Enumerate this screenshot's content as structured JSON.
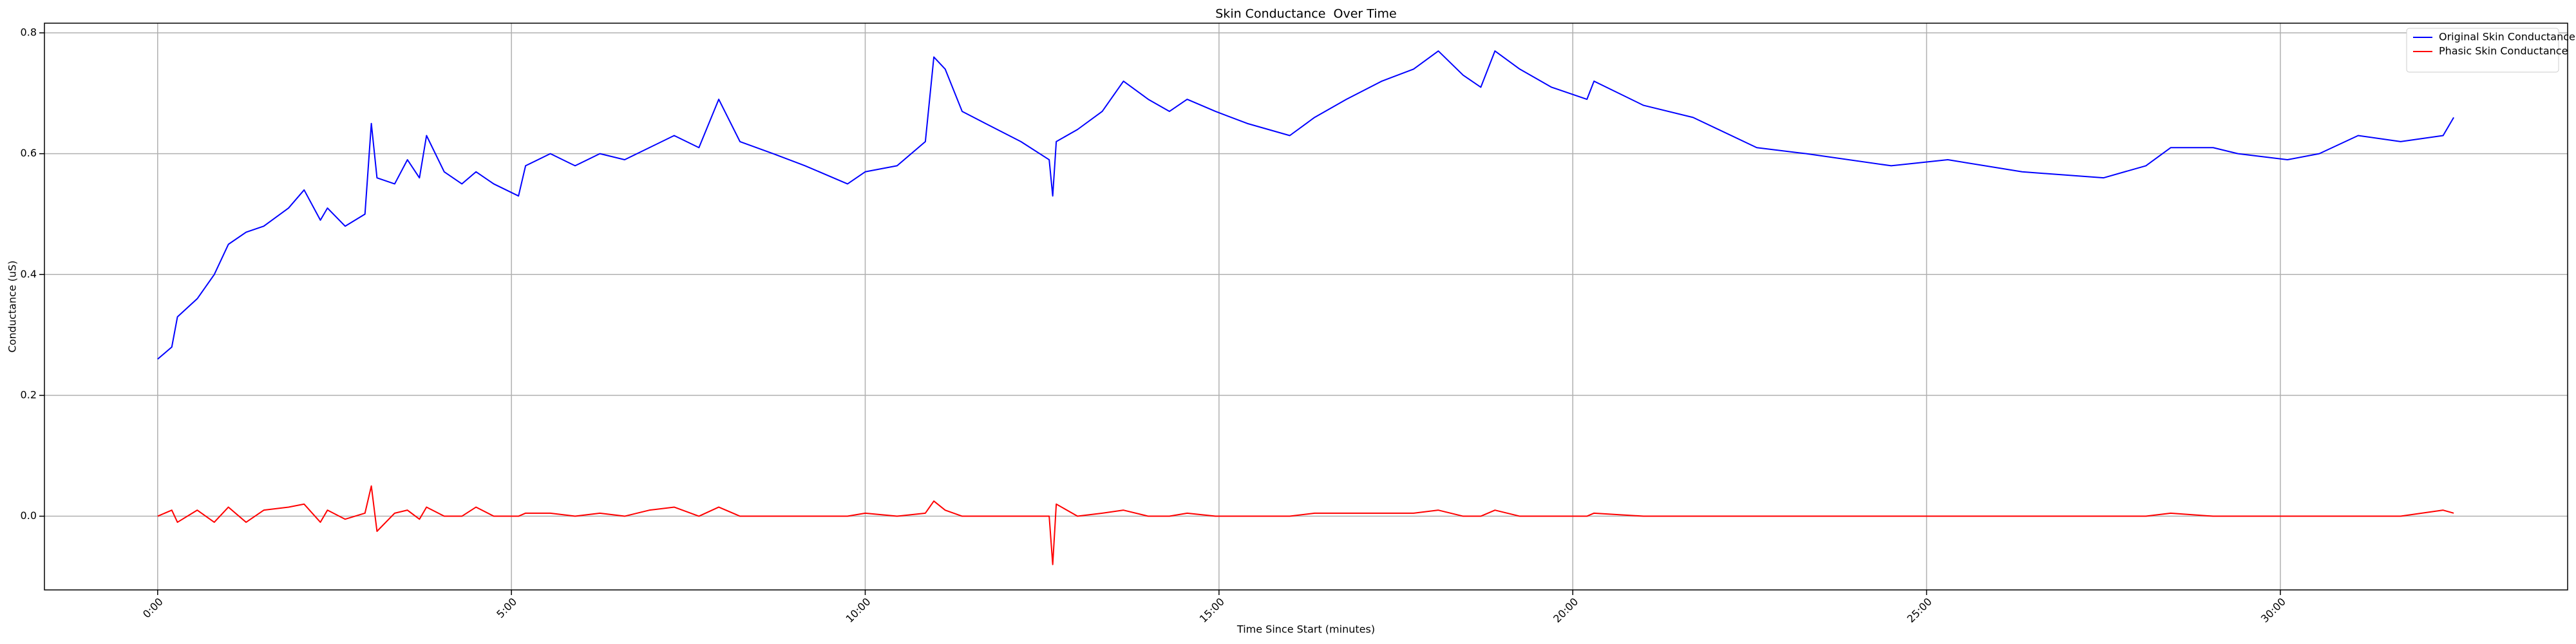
{
  "chart_data": {
    "type": "line",
    "title": "Skin Conductance  Over Time",
    "xlabel": "Time Since Start (minutes)",
    "ylabel": "Conductance (uS)",
    "x": [
      0,
      0.2,
      0.28,
      0.56,
      0.8,
      1.0,
      1.25,
      1.5,
      1.85,
      2.07,
      2.3,
      2.4,
      2.65,
      2.93,
      3.02,
      3.1,
      3.35,
      3.53,
      3.7,
      3.8,
      4.05,
      4.3,
      4.5,
      4.75,
      5.1,
      5.2,
      5.55,
      5.9,
      6.25,
      6.6,
      6.95,
      7.3,
      7.65,
      7.93,
      8.23,
      8.7,
      9.15,
      9.75,
      10.0,
      10.45,
      10.85,
      10.97,
      11.13,
      11.37,
      11.7,
      12.2,
      12.6,
      12.65,
      12.7,
      13.0,
      13.35,
      13.65,
      14.0,
      14.3,
      14.55,
      14.95,
      15.4,
      16.0,
      16.35,
      16.8,
      17.3,
      17.75,
      18.1,
      18.45,
      18.7,
      18.9,
      19.25,
      19.7,
      20.2,
      20.3,
      21.0,
      21.7,
      22.6,
      23.3,
      24.5,
      25.3,
      26.35,
      27.5,
      28.1,
      28.45,
      29.05,
      29.4,
      30.1,
      30.55,
      31.1,
      31.7,
      32.3,
      32.45
    ],
    "series": [
      {
        "name": "Original Skin Conductance",
        "color": "#0000ff",
        "values": [
          0.26,
          0.28,
          0.33,
          0.36,
          0.4,
          0.45,
          0.47,
          0.48,
          0.51,
          0.54,
          0.49,
          0.51,
          0.48,
          0.5,
          0.65,
          0.56,
          0.55,
          0.59,
          0.56,
          0.63,
          0.57,
          0.55,
          0.57,
          0.55,
          0.53,
          0.58,
          0.6,
          0.58,
          0.6,
          0.59,
          0.61,
          0.63,
          0.61,
          0.69,
          0.62,
          0.6,
          0.58,
          0.55,
          0.57,
          0.58,
          0.62,
          0.76,
          0.74,
          0.67,
          0.65,
          0.62,
          0.59,
          0.53,
          0.62,
          0.64,
          0.67,
          0.72,
          0.69,
          0.67,
          0.69,
          0.67,
          0.65,
          0.63,
          0.66,
          0.69,
          0.72,
          0.74,
          0.77,
          0.73,
          0.71,
          0.77,
          0.74,
          0.71,
          0.69,
          0.72,
          0.68,
          0.66,
          0.61,
          0.6,
          0.58,
          0.59,
          0.57,
          0.56,
          0.58,
          0.61,
          0.61,
          0.6,
          0.59,
          0.6,
          0.63,
          0.62,
          0.63,
          0.66
        ]
      },
      {
        "name": "Phasic Skin Conductance",
        "color": "#ff0000",
        "values": [
          0,
          0.01,
          -0.01,
          0.01,
          -0.01,
          0.015,
          -0.01,
          0.01,
          0.015,
          0.02,
          -0.01,
          0.01,
          -0.005,
          0.005,
          0.05,
          -0.025,
          0.005,
          0.01,
          -0.005,
          0.015,
          0,
          0,
          0.015,
          0,
          0,
          0.005,
          0.005,
          0,
          0.005,
          0,
          0.01,
          0.015,
          0,
          0.015,
          0,
          0,
          0,
          0,
          0.005,
          0,
          0.005,
          0.025,
          0.01,
          0,
          0,
          0,
          0,
          -0.08,
          0.02,
          0,
          0.005,
          0.01,
          0,
          0,
          0.005,
          0,
          0,
          0,
          0.005,
          0.005,
          0.005,
          0.005,
          0.01,
          0,
          0,
          0.01,
          0,
          0,
          0,
          0.005,
          0,
          0,
          0,
          0,
          0,
          0,
          0,
          0,
          0,
          0.005,
          0,
          0,
          0,
          0,
          0,
          0,
          0.01,
          0.005
        ]
      }
    ],
    "xlim": [
      -1.6,
      34.06
    ],
    "ylim": [
      -0.122,
      0.816
    ],
    "xticks": [
      {
        "value": 0,
        "label": "0:00"
      },
      {
        "value": 5,
        "label": "5:00"
      },
      {
        "value": 10,
        "label": "10:00"
      },
      {
        "value": 15,
        "label": "15:00"
      },
      {
        "value": 20,
        "label": "20:00"
      },
      {
        "value": 25,
        "label": "25:00"
      },
      {
        "value": 30,
        "label": "30:00"
      }
    ],
    "yticks": [
      {
        "value": 0,
        "label": "0.0"
      },
      0.2,
      0.4,
      0.6,
      0.8
    ],
    "grid": true,
    "legend": "upper right"
  }
}
